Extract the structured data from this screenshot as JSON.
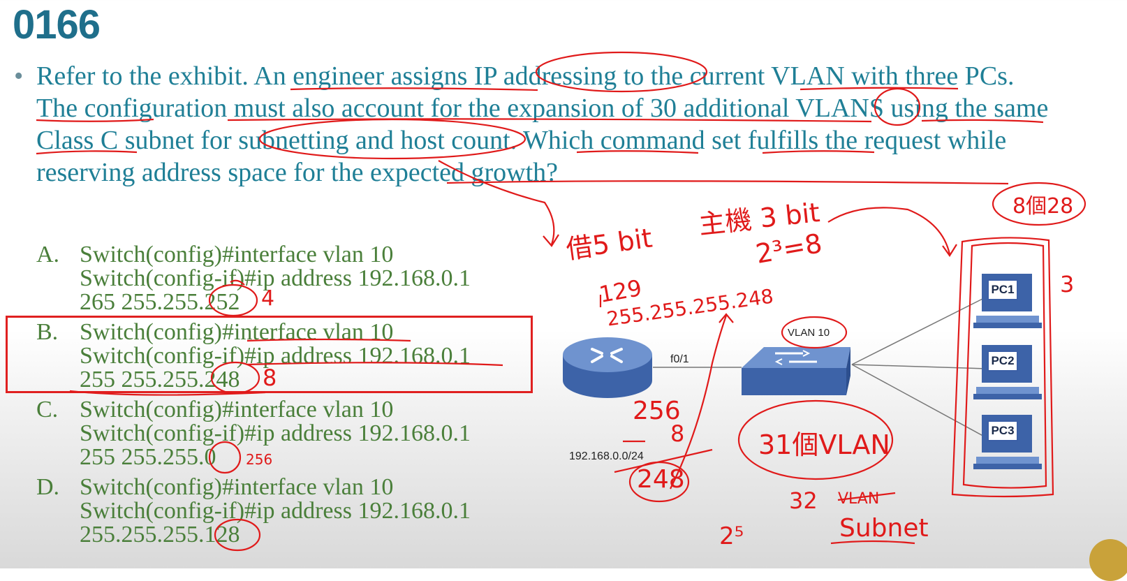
{
  "slide": {
    "number": "0166"
  },
  "question": {
    "bullet": "•",
    "text": "Refer to the exhibit. An engineer assigns IP addressing to the current VLAN with three PCs. The configuration must also account for the expansion of 30 additional VLANS using the same Class C subnet for subnetting and host count. Which command set fulfills the request while reserving address space for the expected growth?"
  },
  "options": [
    {
      "letter": "A.",
      "lines": [
        "Switch(config)#interface vlan 10",
        "Switch(config-if)#ip address 192.168.0.1",
        "265 255.255.252"
      ]
    },
    {
      "letter": "B.",
      "lines": [
        "Switch(config)#interface vlan 10",
        "Switch(config-if)#ip address 192.168.0.1",
        "255 255.255.248"
      ]
    },
    {
      "letter": "C.",
      "lines": [
        "Switch(config)#interface vlan 10",
        "Switch(config-if)#ip address 192.168.0.1",
        "255 255.255.0"
      ]
    },
    {
      "letter": "D.",
      "lines": [
        "Switch(config)#interface vlan 10",
        "Switch(config-if)#ip address 192.168.0.1",
        "255.255.255.128"
      ]
    }
  ],
  "diagram": {
    "link_label": "f0/1",
    "network_label": "192.168.0.0/24",
    "vlan_label": "VLAN 10",
    "pcs": [
      "PC1",
      "PC2",
      "PC3"
    ]
  },
  "annotations": {
    "a_note": "4",
    "b_note": "8",
    "c_note": "256",
    "borrow": "借5 bit",
    "host_bits": "主機 3 bit",
    "power": "2³=8",
    "eight_groups": "8個28",
    "three": "3",
    "mask_129": "129",
    "mask_full": "255.255.255.248",
    "calc_256": "256",
    "calc_8": "8",
    "calc_248": "248",
    "vlans_31": "31個VLAN",
    "count_32": "32",
    "vlan_struck": "VLAN",
    "subnet": "Subnet",
    "two_five": "2⁵"
  },
  "colors": {
    "title": "#1f6f8b",
    "question": "#1f7f96",
    "options": "#4a7f3a",
    "annotation": "#e01a1a"
  },
  "icons": [
    "router-icon",
    "switch-icon",
    "pc-icon"
  ]
}
